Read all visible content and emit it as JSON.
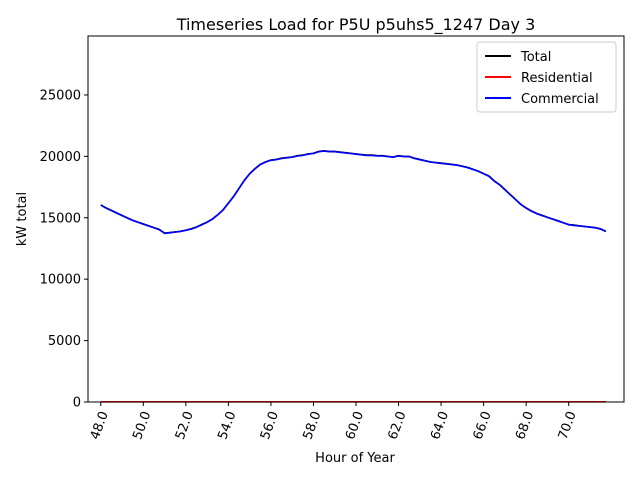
{
  "chart_data": {
    "type": "line",
    "title": "Timeseries Load for P5U p5uhs5_1247  Day 3",
    "xlabel": "Hour of Year",
    "ylabel": "kW total",
    "xlim": [
      47.4,
      72.6
    ],
    "ylim": [
      0,
      29800
    ],
    "x_ticks": [
      "48.0",
      "50.0",
      "52.0",
      "54.0",
      "56.0",
      "58.0",
      "60.0",
      "62.0",
      "64.0",
      "66.0",
      "68.0",
      "70.0"
    ],
    "y_ticks": [
      "0",
      "5000",
      "10000",
      "15000",
      "20000",
      "25000"
    ],
    "legend_position": "top-right",
    "x": [
      48.0,
      48.25,
      48.5,
      48.75,
      49.0,
      49.25,
      49.5,
      49.75,
      50.0,
      50.25,
      50.5,
      50.75,
      51.0,
      51.25,
      51.5,
      51.75,
      52.0,
      52.25,
      52.5,
      52.75,
      53.0,
      53.25,
      53.5,
      53.75,
      54.0,
      54.25,
      54.5,
      54.75,
      55.0,
      55.25,
      55.5,
      55.75,
      56.0,
      56.25,
      56.5,
      56.75,
      57.0,
      57.25,
      57.5,
      57.75,
      58.0,
      58.25,
      58.5,
      58.75,
      59.0,
      59.25,
      59.5,
      59.75,
      60.0,
      60.25,
      60.5,
      60.75,
      61.0,
      61.25,
      61.5,
      61.75,
      62.0,
      62.25,
      62.5,
      62.75,
      63.0,
      63.25,
      63.5,
      63.75,
      64.0,
      64.25,
      64.5,
      64.75,
      65.0,
      65.25,
      65.5,
      65.75,
      66.0,
      66.25,
      66.5,
      66.75,
      67.0,
      67.25,
      67.5,
      67.75,
      68.0,
      68.25,
      68.5,
      68.75,
      69.0,
      69.25,
      69.5,
      69.75,
      70.0,
      70.25,
      70.5,
      70.75,
      71.0,
      71.25,
      71.5,
      71.75
    ],
    "series": [
      {
        "name": "Total",
        "color": "#000000",
        "values": [
          16050,
          15800,
          15600,
          15400,
          15200,
          15000,
          14800,
          14650,
          14500,
          14350,
          14200,
          14050,
          13750,
          13800,
          13850,
          13900,
          14000,
          14100,
          14250,
          14450,
          14650,
          14900,
          15250,
          15650,
          16200,
          16750,
          17400,
          18050,
          18600,
          19000,
          19350,
          19550,
          19700,
          19750,
          19850,
          19900,
          19950,
          20050,
          20100,
          20200,
          20250,
          20400,
          20450,
          20400,
          20400,
          20350,
          20300,
          20250,
          20200,
          20150,
          20100,
          20100,
          20050,
          20050,
          20000,
          19950,
          20050,
          20000,
          20000,
          19850,
          19750,
          19650,
          19550,
          19500,
          19450,
          19400,
          19350,
          19300,
          19200,
          19100,
          18950,
          18800,
          18600,
          18400,
          18000,
          17700,
          17300,
          16900,
          16500,
          16100,
          15800,
          15550,
          15350,
          15200,
          15050,
          14900,
          14750,
          14600,
          14450,
          14400,
          14350,
          14300,
          14250,
          14200,
          14100,
          13900
        ]
      },
      {
        "name": "Residential",
        "color": "#ff0000",
        "values": [
          20,
          20,
          20,
          20,
          20,
          20,
          20,
          20,
          20,
          20,
          20,
          20,
          20,
          20,
          20,
          20,
          20,
          20,
          20,
          20,
          20,
          20,
          20,
          20,
          20,
          20,
          20,
          20,
          20,
          20,
          20,
          20,
          20,
          20,
          20,
          20,
          20,
          20,
          20,
          20,
          20,
          20,
          20,
          20,
          20,
          20,
          20,
          20,
          20,
          20,
          20,
          20,
          20,
          20,
          20,
          20,
          20,
          20,
          20,
          20,
          20,
          20,
          20,
          20,
          20,
          20,
          20,
          20,
          20,
          20,
          20,
          20,
          20,
          20,
          20,
          20,
          20,
          20,
          20,
          20,
          20,
          20,
          20,
          20,
          20,
          20,
          20,
          20,
          20,
          20,
          20,
          20,
          20,
          20,
          20,
          20
        ]
      },
      {
        "name": "Commercial",
        "color": "#0000ff",
        "values": [
          16030,
          15780,
          15580,
          15380,
          15180,
          14980,
          14780,
          14630,
          14480,
          14330,
          14180,
          14030,
          13730,
          13780,
          13830,
          13880,
          13980,
          14080,
          14230,
          14430,
          14630,
          14880,
          15230,
          15630,
          16180,
          16730,
          17380,
          18030,
          18580,
          18980,
          19330,
          19530,
          19680,
          19730,
          19830,
          19880,
          19930,
          20030,
          20080,
          20180,
          20230,
          20380,
          20430,
          20380,
          20380,
          20330,
          20280,
          20230,
          20180,
          20130,
          20080,
          20080,
          20030,
          20030,
          19980,
          19930,
          20030,
          19980,
          19980,
          19830,
          19730,
          19630,
          19530,
          19480,
          19430,
          19380,
          19330,
          19280,
          19180,
          19080,
          18930,
          18780,
          18580,
          18380,
          17980,
          17680,
          17280,
          16880,
          16480,
          16080,
          15780,
          15530,
          15330,
          15180,
          15030,
          14880,
          14730,
          14580,
          14430,
          14380,
          14330,
          14280,
          14230,
          14180,
          14080,
          13880
        ]
      }
    ]
  }
}
